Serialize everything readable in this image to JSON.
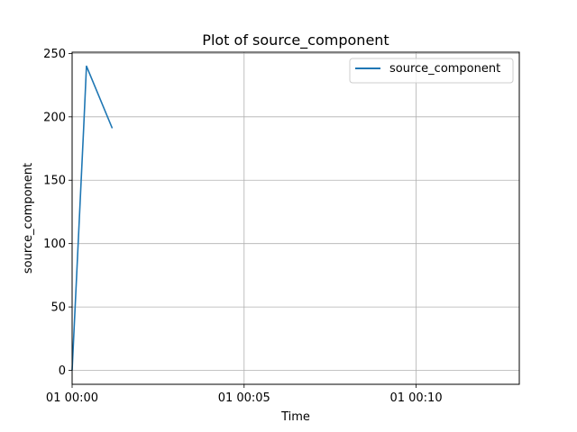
{
  "chart_data": {
    "type": "line",
    "title": "Plot of source_component",
    "xlabel": "Time",
    "ylabel": "source_component",
    "x_tick_labels": [
      "01 00:00",
      "01 00:05",
      "01 00:10"
    ],
    "x_ticks": [
      "00:00:00",
      "00:05:00",
      "00:10:00"
    ],
    "xlim": [
      "00:00:00",
      "00:13:00"
    ],
    "y_ticks": [
      0,
      50,
      100,
      150,
      200,
      250
    ],
    "ylim": [
      -11,
      251
    ],
    "grid": true,
    "legend_position": "top-right",
    "series": [
      {
        "name": "source_component",
        "color": "#1f77b4",
        "x": [
          "00:00:00",
          "00:00:20",
          "00:00:25",
          "00:01:10"
        ],
        "y": [
          0,
          190,
          240,
          191
        ]
      }
    ]
  }
}
